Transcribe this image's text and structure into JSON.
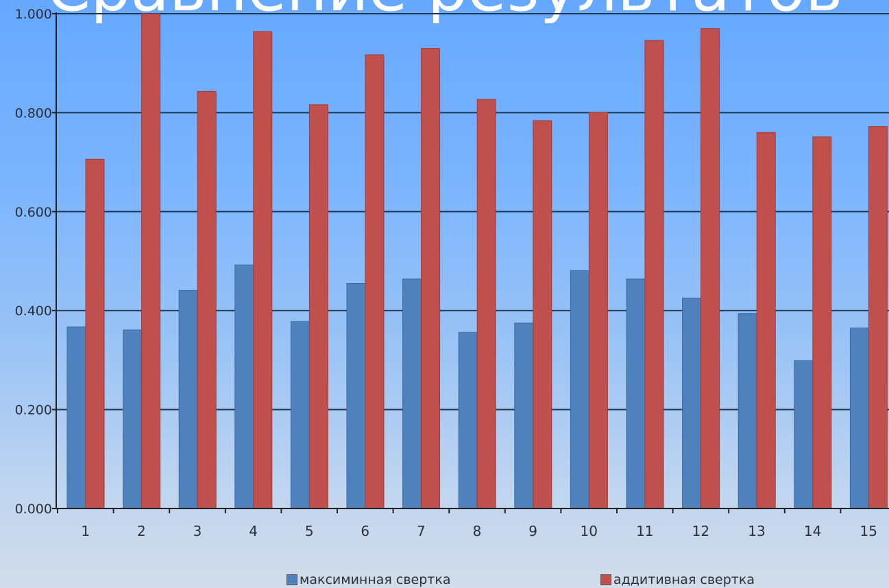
{
  "title": "Сравнение результатов",
  "colors": {
    "series1": "#4f81bd",
    "series2": "#c0504d",
    "grid": "#1f3550",
    "axis": "#222222",
    "text": "#2a2f3a"
  },
  "legend": {
    "items": [
      "максиминная свертка",
      "аддитивная свертка"
    ]
  },
  "chart_data": {
    "type": "bar",
    "title": "Сравнение результатов",
    "xlabel": "",
    "ylabel": "",
    "categories": [
      "1",
      "2",
      "3",
      "4",
      "5",
      "6",
      "7",
      "8",
      "9",
      "10",
      "11",
      "12",
      "13",
      "14",
      "15"
    ],
    "series": [
      {
        "name": "максиминная свертка",
        "values": [
          0.367,
          0.361,
          0.441,
          0.492,
          0.378,
          0.455,
          0.464,
          0.356,
          0.375,
          0.481,
          0.464,
          0.425,
          0.394,
          0.299,
          0.365
        ]
      },
      {
        "name": "аддитивная свертка",
        "values": [
          0.706,
          1.0,
          0.843,
          0.964,
          0.816,
          0.917,
          0.93,
          0.827,
          0.784,
          0.801,
          0.946,
          0.97,
          0.76,
          0.751,
          0.772
        ]
      }
    ],
    "ylim": [
      0,
      1.0
    ],
    "yticks": [
      "0.000",
      "0.200",
      "0.400",
      "0.600",
      "0.800",
      "1.000"
    ],
    "grid": true,
    "legend_position": "bottom"
  }
}
